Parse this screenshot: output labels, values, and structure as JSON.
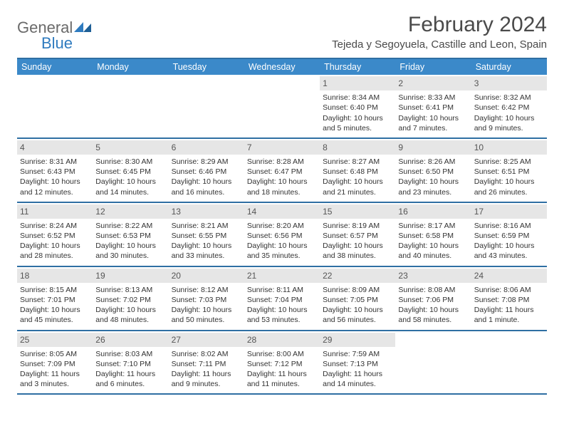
{
  "logo": {
    "general": "General",
    "blue": "Blue"
  },
  "title": "February 2024",
  "location": "Tejeda y Segoyuela, Castille and Leon, Spain",
  "colors": {
    "header_bg": "#3b89c9",
    "header_border": "#2f6fa3",
    "daynum_bg": "#e6e6e6",
    "text": "#333333",
    "logo_gray": "#6a6a6a",
    "logo_blue": "#2f7bbf"
  },
  "day_names": [
    "Sunday",
    "Monday",
    "Tuesday",
    "Wednesday",
    "Thursday",
    "Friday",
    "Saturday"
  ],
  "weeks": [
    [
      {
        "n": "",
        "sunrise": "",
        "sunset": "",
        "daylight": ""
      },
      {
        "n": "",
        "sunrise": "",
        "sunset": "",
        "daylight": ""
      },
      {
        "n": "",
        "sunrise": "",
        "sunset": "",
        "daylight": ""
      },
      {
        "n": "",
        "sunrise": "",
        "sunset": "",
        "daylight": ""
      },
      {
        "n": "1",
        "sunrise": "Sunrise: 8:34 AM",
        "sunset": "Sunset: 6:40 PM",
        "daylight": "Daylight: 10 hours and 5 minutes."
      },
      {
        "n": "2",
        "sunrise": "Sunrise: 8:33 AM",
        "sunset": "Sunset: 6:41 PM",
        "daylight": "Daylight: 10 hours and 7 minutes."
      },
      {
        "n": "3",
        "sunrise": "Sunrise: 8:32 AM",
        "sunset": "Sunset: 6:42 PM",
        "daylight": "Daylight: 10 hours and 9 minutes."
      }
    ],
    [
      {
        "n": "4",
        "sunrise": "Sunrise: 8:31 AM",
        "sunset": "Sunset: 6:43 PM",
        "daylight": "Daylight: 10 hours and 12 minutes."
      },
      {
        "n": "5",
        "sunrise": "Sunrise: 8:30 AM",
        "sunset": "Sunset: 6:45 PM",
        "daylight": "Daylight: 10 hours and 14 minutes."
      },
      {
        "n": "6",
        "sunrise": "Sunrise: 8:29 AM",
        "sunset": "Sunset: 6:46 PM",
        "daylight": "Daylight: 10 hours and 16 minutes."
      },
      {
        "n": "7",
        "sunrise": "Sunrise: 8:28 AM",
        "sunset": "Sunset: 6:47 PM",
        "daylight": "Daylight: 10 hours and 18 minutes."
      },
      {
        "n": "8",
        "sunrise": "Sunrise: 8:27 AM",
        "sunset": "Sunset: 6:48 PM",
        "daylight": "Daylight: 10 hours and 21 minutes."
      },
      {
        "n": "9",
        "sunrise": "Sunrise: 8:26 AM",
        "sunset": "Sunset: 6:50 PM",
        "daylight": "Daylight: 10 hours and 23 minutes."
      },
      {
        "n": "10",
        "sunrise": "Sunrise: 8:25 AM",
        "sunset": "Sunset: 6:51 PM",
        "daylight": "Daylight: 10 hours and 26 minutes."
      }
    ],
    [
      {
        "n": "11",
        "sunrise": "Sunrise: 8:24 AM",
        "sunset": "Sunset: 6:52 PM",
        "daylight": "Daylight: 10 hours and 28 minutes."
      },
      {
        "n": "12",
        "sunrise": "Sunrise: 8:22 AM",
        "sunset": "Sunset: 6:53 PM",
        "daylight": "Daylight: 10 hours and 30 minutes."
      },
      {
        "n": "13",
        "sunrise": "Sunrise: 8:21 AM",
        "sunset": "Sunset: 6:55 PM",
        "daylight": "Daylight: 10 hours and 33 minutes."
      },
      {
        "n": "14",
        "sunrise": "Sunrise: 8:20 AM",
        "sunset": "Sunset: 6:56 PM",
        "daylight": "Daylight: 10 hours and 35 minutes."
      },
      {
        "n": "15",
        "sunrise": "Sunrise: 8:19 AM",
        "sunset": "Sunset: 6:57 PM",
        "daylight": "Daylight: 10 hours and 38 minutes."
      },
      {
        "n": "16",
        "sunrise": "Sunrise: 8:17 AM",
        "sunset": "Sunset: 6:58 PM",
        "daylight": "Daylight: 10 hours and 40 minutes."
      },
      {
        "n": "17",
        "sunrise": "Sunrise: 8:16 AM",
        "sunset": "Sunset: 6:59 PM",
        "daylight": "Daylight: 10 hours and 43 minutes."
      }
    ],
    [
      {
        "n": "18",
        "sunrise": "Sunrise: 8:15 AM",
        "sunset": "Sunset: 7:01 PM",
        "daylight": "Daylight: 10 hours and 45 minutes."
      },
      {
        "n": "19",
        "sunrise": "Sunrise: 8:13 AM",
        "sunset": "Sunset: 7:02 PM",
        "daylight": "Daylight: 10 hours and 48 minutes."
      },
      {
        "n": "20",
        "sunrise": "Sunrise: 8:12 AM",
        "sunset": "Sunset: 7:03 PM",
        "daylight": "Daylight: 10 hours and 50 minutes."
      },
      {
        "n": "21",
        "sunrise": "Sunrise: 8:11 AM",
        "sunset": "Sunset: 7:04 PM",
        "daylight": "Daylight: 10 hours and 53 minutes."
      },
      {
        "n": "22",
        "sunrise": "Sunrise: 8:09 AM",
        "sunset": "Sunset: 7:05 PM",
        "daylight": "Daylight: 10 hours and 56 minutes."
      },
      {
        "n": "23",
        "sunrise": "Sunrise: 8:08 AM",
        "sunset": "Sunset: 7:06 PM",
        "daylight": "Daylight: 10 hours and 58 minutes."
      },
      {
        "n": "24",
        "sunrise": "Sunrise: 8:06 AM",
        "sunset": "Sunset: 7:08 PM",
        "daylight": "Daylight: 11 hours and 1 minute."
      }
    ],
    [
      {
        "n": "25",
        "sunrise": "Sunrise: 8:05 AM",
        "sunset": "Sunset: 7:09 PM",
        "daylight": "Daylight: 11 hours and 3 minutes."
      },
      {
        "n": "26",
        "sunrise": "Sunrise: 8:03 AM",
        "sunset": "Sunset: 7:10 PM",
        "daylight": "Daylight: 11 hours and 6 minutes."
      },
      {
        "n": "27",
        "sunrise": "Sunrise: 8:02 AM",
        "sunset": "Sunset: 7:11 PM",
        "daylight": "Daylight: 11 hours and 9 minutes."
      },
      {
        "n": "28",
        "sunrise": "Sunrise: 8:00 AM",
        "sunset": "Sunset: 7:12 PM",
        "daylight": "Daylight: 11 hours and 11 minutes."
      },
      {
        "n": "29",
        "sunrise": "Sunrise: 7:59 AM",
        "sunset": "Sunset: 7:13 PM",
        "daylight": "Daylight: 11 hours and 14 minutes."
      },
      {
        "n": "",
        "sunrise": "",
        "sunset": "",
        "daylight": ""
      },
      {
        "n": "",
        "sunrise": "",
        "sunset": "",
        "daylight": ""
      }
    ]
  ]
}
